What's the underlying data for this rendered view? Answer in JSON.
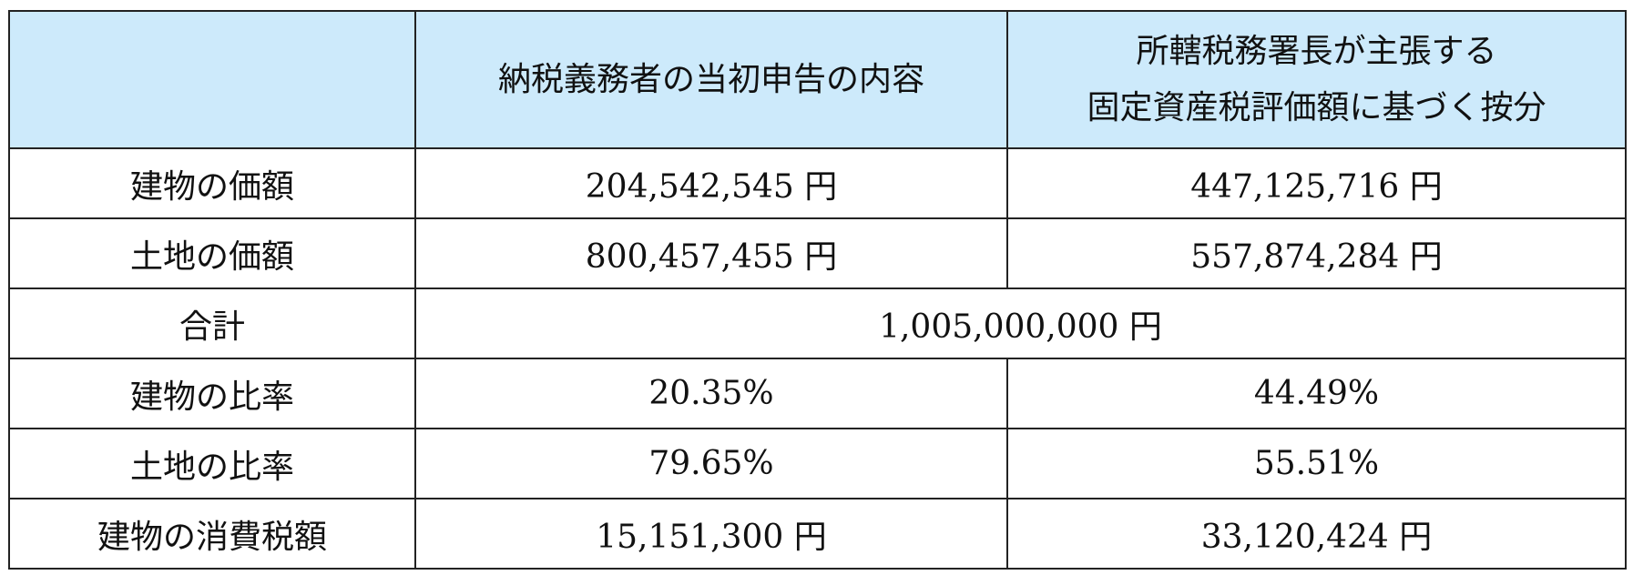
{
  "table": {
    "header": [
      "",
      "納税義務者の当初申告の内容",
      [
        "所轄税務署長が主張する",
        "固定資産税評価額に基づく按分"
      ]
    ],
    "rows": [
      [
        "建物の価額",
        "204,542,545 円",
        "447,125,716 円"
      ],
      [
        "土地の価額",
        "800,457,455 円",
        "557,874,284 円"
      ],
      [
        "合計",
        "1,005,000,000 円"
      ],
      [
        "建物の比率",
        "20.35%",
        "44.49%"
      ],
      [
        "土地の比率",
        "79.65%",
        "55.51%"
      ],
      [
        "建物の消費税額",
        "15,151,300 円",
        "33,120,424 円"
      ]
    ]
  }
}
